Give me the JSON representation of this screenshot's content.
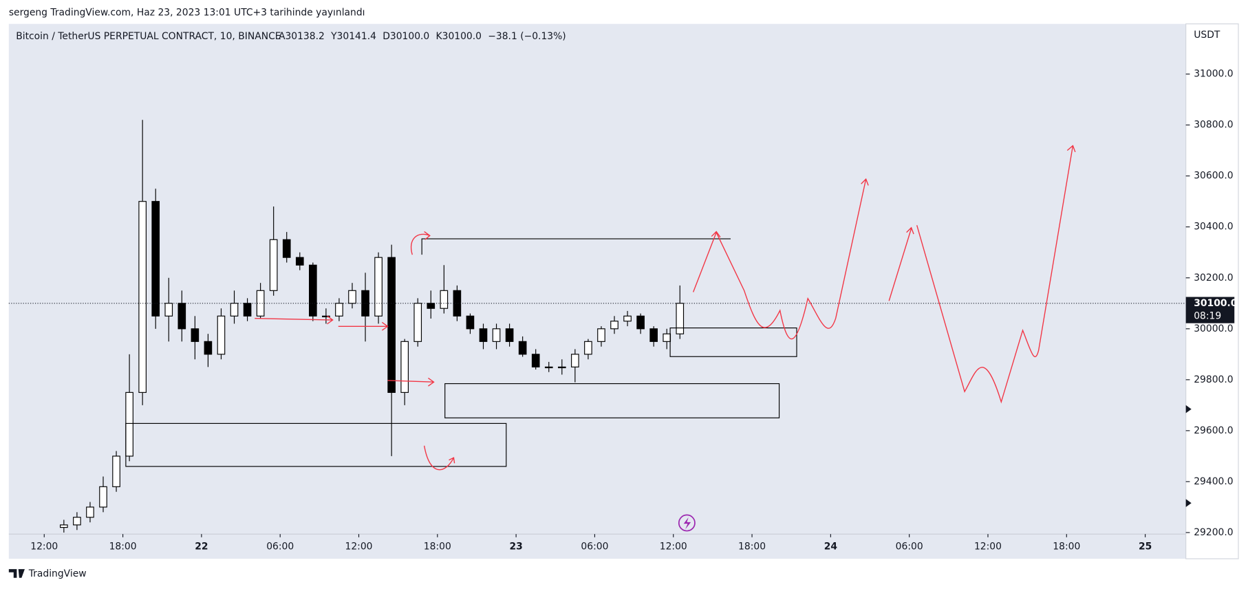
{
  "header": {
    "byline": "sergeng TradingView.com, Haz 23, 2023 13:01 UTC+3 tarihinde yayınlandı",
    "footer": "TradingView"
  },
  "chart_data": {
    "type": "candlestick",
    "title": "Bitcoin / TetherUS PERPETUAL CONTRACT, 10, BINANCE",
    "legend_values": [
      "A30138.2",
      "Y30141.4",
      "D30100.0",
      "K30100.0",
      "−38.1 (−0.13%)"
    ],
    "currency": "USDT",
    "price_label": "30100.0",
    "countdown": "08:19",
    "x": [
      13.5,
      14.5,
      15.5,
      16.5,
      17.5,
      18.5,
      19.5,
      20.5,
      21.5,
      22.5,
      23.5,
      24.5,
      25.5,
      26.5,
      27.5,
      28.5,
      29.5,
      30.5,
      31.5,
      32.5,
      33.5,
      34.5,
      35.5,
      36.5,
      37.5,
      38.5,
      39.5,
      40.5,
      41.5,
      42.5,
      43.5,
      44.5,
      45.5,
      46.5,
      47.5,
      48.5,
      49.5,
      50.5,
      51.5,
      52.5,
      53.5,
      54.5,
      55.5,
      56.5,
      57.5,
      58.5,
      59.5,
      60.5
    ],
    "open": [
      29220,
      29230,
      29260,
      29300,
      29380,
      29500,
      29750,
      30500,
      30050,
      30100,
      30000,
      29950,
      29900,
      30050,
      30100,
      30050,
      30150,
      30350,
      30280,
      30250,
      30050,
      30050,
      30100,
      30150,
      30050,
      30280,
      29750,
      29950,
      30100,
      30080,
      30150,
      30050,
      30000,
      29950,
      30000,
      29950,
      29900,
      29850,
      29850,
      29850,
      29900,
      29950,
      30000,
      30030,
      30050,
      30000,
      29950,
      29980
    ],
    "high": [
      29250,
      29280,
      29320,
      29420,
      29520,
      29900,
      30820,
      30550,
      30200,
      30150,
      30050,
      29980,
      30080,
      30150,
      30120,
      30180,
      30480,
      30380,
      30300,
      30260,
      30080,
      30120,
      30180,
      30220,
      30300,
      30330,
      29960,
      30120,
      30150,
      30250,
      30170,
      30060,
      30020,
      30020,
      30020,
      29970,
      29920,
      29870,
      29880,
      29920,
      29960,
      30010,
      30050,
      30070,
      30060,
      30010,
      30000,
      30170
    ],
    "low": [
      29200,
      29210,
      29240,
      29280,
      29360,
      29480,
      29700,
      30000,
      29950,
      29950,
      29880,
      29850,
      29880,
      30020,
      30030,
      30040,
      30130,
      30260,
      30230,
      30030,
      30020,
      30030,
      30080,
      29950,
      30020,
      29500,
      29700,
      29930,
      30040,
      30060,
      30030,
      29980,
      29920,
      29920,
      29930,
      29890,
      29840,
      29830,
      29820,
      29790,
      29880,
      29930,
      29980,
      30010,
      29980,
      29930,
      29920,
      29960
    ],
    "close": [
      29230,
      29260,
      29300,
      29380,
      29500,
      29750,
      30500,
      30050,
      30100,
      30000,
      29950,
      29900,
      30050,
      30100,
      30050,
      30150,
      30350,
      30280,
      30250,
      30050,
      30050,
      30100,
      30150,
      30050,
      30280,
      29750,
      29950,
      30100,
      30080,
      30150,
      30050,
      30000,
      29950,
      30000,
      29950,
      29900,
      29850,
      29850,
      29850,
      29900,
      29950,
      30000,
      30030,
      30050,
      30000,
      29950,
      29980,
      30100
    ],
    "xlim": [
      9.3,
      99.1
    ],
    "ylim": [
      29194,
      31197
    ],
    "xticks": [
      {
        "value": 12,
        "label": "12:00"
      },
      {
        "value": 18,
        "label": "18:00"
      },
      {
        "value": 24,
        "label": "22"
      },
      {
        "value": 30,
        "label": "06:00"
      },
      {
        "value": 36,
        "label": "12:00"
      },
      {
        "value": 42,
        "label": "18:00"
      },
      {
        "value": 48,
        "label": "23"
      },
      {
        "value": 54,
        "label": "06:00"
      },
      {
        "value": 60,
        "label": "12:00"
      },
      {
        "value": 66,
        "label": "18:00"
      },
      {
        "value": 72,
        "label": "24"
      },
      {
        "value": 78,
        "label": "06:00"
      },
      {
        "value": 84,
        "label": "12:00"
      },
      {
        "value": 90,
        "label": "18:00"
      },
      {
        "value": 96,
        "label": "25"
      }
    ],
    "yticks": [
      {
        "value": 29200,
        "label": "29200.0"
      },
      {
        "value": 29400,
        "label": "29400.0"
      },
      {
        "value": 29600,
        "label": "29600.0"
      },
      {
        "value": 29800,
        "label": "29800.0"
      },
      {
        "value": 30000,
        "label": "30000.0"
      },
      {
        "value": 30200,
        "label": "30200.0"
      },
      {
        "value": 30400,
        "label": "30400.0"
      },
      {
        "value": 30600,
        "label": "30600.0"
      },
      {
        "value": 30800,
        "label": "30800.0"
      },
      {
        "value": 31000,
        "label": "31000.0"
      }
    ],
    "up_color": "#ffffff",
    "down_color": "#000000"
  }
}
